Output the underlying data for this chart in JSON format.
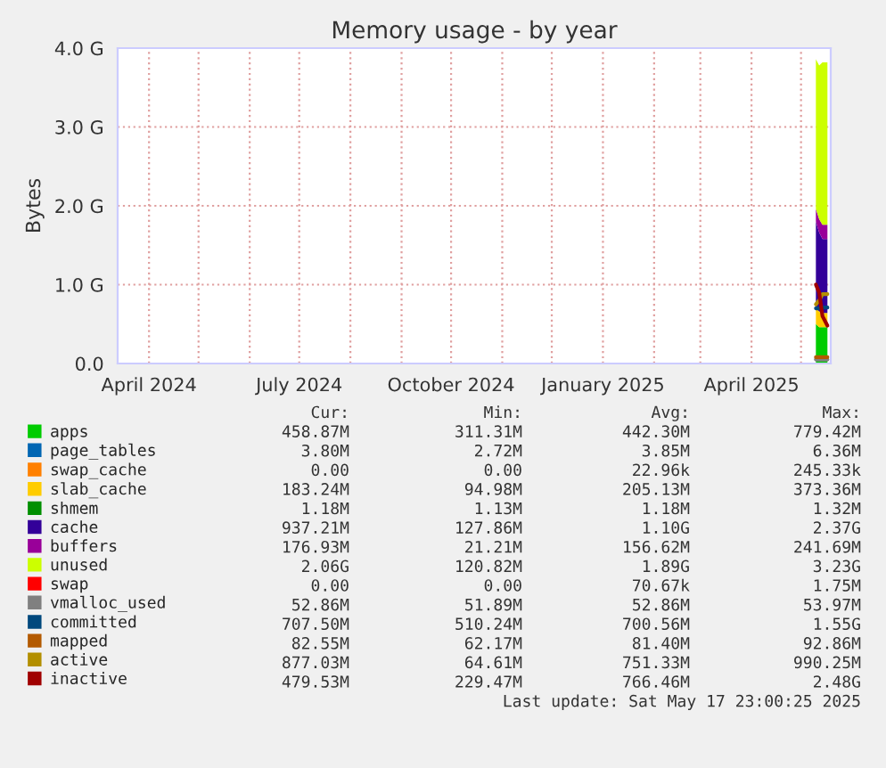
{
  "chart_data": {
    "type": "area",
    "title": "Memory usage - by year",
    "ylabel": "Bytes",
    "stacked": true,
    "x": [
      "2025-05-10",
      "2025-05-12",
      "2025-05-14",
      "2025-05-17"
    ],
    "xlim": [
      "2024-03-13",
      "2025-05-19"
    ],
    "xticks": [
      {
        "value": "2024-04-01",
        "label": "April 2024"
      },
      {
        "value": "2024-05-01",
        "label": null
      },
      {
        "value": "2024-06-01",
        "label": null
      },
      {
        "value": "2024-07-01",
        "label": "July 2024"
      },
      {
        "value": "2024-08-01",
        "label": null
      },
      {
        "value": "2024-09-01",
        "label": null
      },
      {
        "value": "2024-10-01",
        "label": "October 2024"
      },
      {
        "value": "2024-11-01",
        "label": null
      },
      {
        "value": "2024-12-01",
        "label": null
      },
      {
        "value": "2025-01-01",
        "label": "January 2025"
      },
      {
        "value": "2025-02-01",
        "label": null
      },
      {
        "value": "2025-03-01",
        "label": null
      },
      {
        "value": "2025-04-01",
        "label": "April 2025"
      },
      {
        "value": "2025-05-01",
        "label": null
      }
    ],
    "ylim": [
      0,
      4
    ],
    "yticks": [
      {
        "value": 0,
        "label": "0.0"
      },
      {
        "value": 1,
        "label": "1.0 G"
      },
      {
        "value": 2,
        "label": "2.0 G"
      },
      {
        "value": 3,
        "label": "3.0 G"
      },
      {
        "value": 4,
        "label": "4.0 G"
      }
    ],
    "grid": true,
    "legend": "bottom",
    "series": [
      {
        "name": "apps",
        "color": "#00cc00",
        "values": [
          0.5,
          0.46,
          0.46,
          0.46
        ]
      },
      {
        "name": "page_tables",
        "color": "#0066b3",
        "values": [
          null,
          null,
          null,
          null
        ]
      },
      {
        "name": "swap_cache",
        "color": "#ff8000",
        "values": [
          null,
          null,
          null,
          null
        ]
      },
      {
        "name": "slab_cache",
        "color": "#ffcc00",
        "values": [
          0.2,
          0.2,
          0.18,
          0.18
        ]
      },
      {
        "name": "shmem",
        "color": "#008f00",
        "values": [
          null,
          null,
          null,
          null
        ]
      },
      {
        "name": "cache",
        "color": "#330099",
        "values": [
          1.1,
          1.0,
          0.94,
          0.94
        ]
      },
      {
        "name": "buffers",
        "color": "#990099",
        "values": [
          0.16,
          0.17,
          0.18,
          0.18
        ]
      },
      {
        "name": "unused",
        "color": "#ccff00",
        "values": [
          1.9,
          1.95,
          2.06,
          2.06
        ]
      },
      {
        "name": "swap",
        "color": "#ff0000",
        "values": [
          null,
          null,
          null,
          null
        ]
      },
      {
        "name": "vmalloc_used",
        "color": "#808080",
        "type": "line",
        "values": [
          0.05,
          0.05,
          0.05,
          0.05
        ]
      },
      {
        "name": "committed",
        "color": "#00487d",
        "type": "line",
        "values": [
          0.7,
          0.7,
          0.71,
          0.71
        ]
      },
      {
        "name": "mapped",
        "color": "#b35a00",
        "type": "line",
        "values": [
          0.08,
          0.08,
          0.08,
          0.08
        ]
      },
      {
        "name": "active",
        "color": "#b38f00",
        "type": "line",
        "values": [
          0.75,
          0.8,
          0.88,
          0.88
        ]
      },
      {
        "name": "inactive",
        "color": "#a00000",
        "type": "line",
        "values": [
          1.0,
          0.9,
          0.6,
          0.48
        ]
      }
    ],
    "annotations": [
      "Cur:",
      "Min:",
      "Avg:",
      "Max:",
      "458.87M",
      "311.31M",
      "442.30M",
      "779.42M",
      "3.80M",
      "2.72M",
      "3.85M",
      "6.36M",
      "0.00",
      "0.00",
      "22.96k",
      "245.33k",
      "183.24M",
      "94.98M",
      "205.13M",
      "373.36M",
      "1.18M",
      "1.13M",
      "1.18M",
      "1.32M",
      "937.21M",
      "127.86M",
      "1.10G",
      "2.37G",
      "176.93M",
      "21.21M",
      "156.62M",
      "241.69M",
      "2.06G",
      "120.82M",
      "1.89G",
      "3.23G",
      "0.00",
      "0.00",
      "70.67k",
      "1.75M",
      "52.86M",
      "51.89M",
      "52.86M",
      "53.97M",
      "707.50M",
      "510.24M",
      "700.56M",
      "1.55G",
      "82.55M",
      "62.17M",
      "81.40M",
      "92.86M",
      "877.03M",
      "64.61M",
      "751.33M",
      "990.25M",
      "479.53M",
      "229.47M",
      "766.46M",
      "2.48G",
      "Last update: Sat May 17 23:00:25 2025"
    ]
  }
}
